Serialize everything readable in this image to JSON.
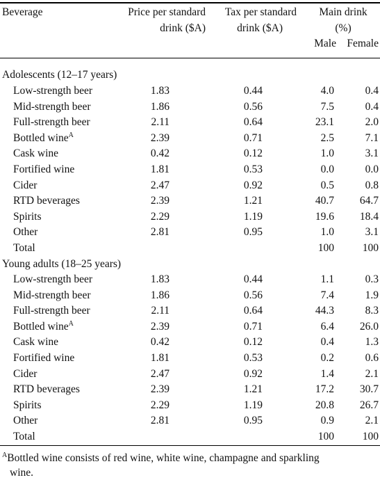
{
  "header": {
    "beverage": "Beverage",
    "price_line1": "Price per standard",
    "price_line2": "drink ($A)",
    "tax_line1": "Tax per standard",
    "tax_line2": "drink ($A)",
    "main_line1": "Main drink",
    "main_line2": "(%)",
    "male": "Male",
    "female": "Female"
  },
  "groups": [
    {
      "title": "Adolescents (12–17 years)",
      "rows": [
        {
          "name": "Low-strength beer",
          "sup": "",
          "price": "1.83",
          "tax": "0.44",
          "male": "4.0",
          "female": "0.4"
        },
        {
          "name": "Mid-strength beer",
          "sup": "",
          "price": "1.86",
          "tax": "0.56",
          "male": "7.5",
          "female": "0.4"
        },
        {
          "name": "Full-strength beer",
          "sup": "",
          "price": "2.11",
          "tax": "0.64",
          "male": "23.1",
          "female": "2.0"
        },
        {
          "name": "Bottled wine",
          "sup": "A",
          "price": "2.39",
          "tax": "0.71",
          "male": "2.5",
          "female": "7.1"
        },
        {
          "name": "Cask wine",
          "sup": "",
          "price": "0.42",
          "tax": "0.12",
          "male": "1.0",
          "female": "3.1"
        },
        {
          "name": "Fortified wine",
          "sup": "",
          "price": "1.81",
          "tax": "0.53",
          "male": "0.0",
          "female": "0.0"
        },
        {
          "name": "Cider",
          "sup": "",
          "price": "2.47",
          "tax": "0.92",
          "male": "0.5",
          "female": "0.8"
        },
        {
          "name": "RTD beverages",
          "sup": "",
          "price": "2.39",
          "tax": "1.21",
          "male": "40.7",
          "female": "64.7"
        },
        {
          "name": "Spirits",
          "sup": "",
          "price": "2.29",
          "tax": "1.19",
          "male": "19.6",
          "female": "18.4"
        },
        {
          "name": "Other",
          "sup": "",
          "price": "2.81",
          "tax": "0.95",
          "male": "1.0",
          "female": "3.1"
        },
        {
          "name": "Total",
          "sup": "",
          "price": "",
          "tax": "",
          "male": "100",
          "female": "100"
        }
      ]
    },
    {
      "title": "Young adults (18–25 years)",
      "rows": [
        {
          "name": "Low-strength beer",
          "sup": "",
          "price": "1.83",
          "tax": "0.44",
          "male": "1.1",
          "female": "0.3"
        },
        {
          "name": "Mid-strength beer",
          "sup": "",
          "price": "1.86",
          "tax": "0.56",
          "male": "7.4",
          "female": "1.9"
        },
        {
          "name": "Full-strength beer",
          "sup": "",
          "price": "2.11",
          "tax": "0.64",
          "male": "44.3",
          "female": "8.3"
        },
        {
          "name": "Bottled wine",
          "sup": "A",
          "price": "2.39",
          "tax": "0.71",
          "male": "6.4",
          "female": "26.0"
        },
        {
          "name": "Cask wine",
          "sup": "",
          "price": "0.42",
          "tax": "0.12",
          "male": "0.4",
          "female": "1.3"
        },
        {
          "name": "Fortified wine",
          "sup": "",
          "price": "1.81",
          "tax": "0.53",
          "male": "0.2",
          "female": "0.6"
        },
        {
          "name": "Cider",
          "sup": "",
          "price": "2.47",
          "tax": "0.92",
          "male": "1.4",
          "female": "2.1"
        },
        {
          "name": "RTD beverages",
          "sup": "",
          "price": "2.39",
          "tax": "1.21",
          "male": "17.2",
          "female": "30.7"
        },
        {
          "name": "Spirits",
          "sup": "",
          "price": "2.29",
          "tax": "1.19",
          "male": "20.8",
          "female": "26.7"
        },
        {
          "name": "Other",
          "sup": "",
          "price": "2.81",
          "tax": "0.95",
          "male": "0.9",
          "female": "2.1"
        },
        {
          "name": "Total",
          "sup": "",
          "price": "",
          "tax": "",
          "male": "100",
          "female": "100"
        }
      ]
    }
  ],
  "footnote": {
    "marker": "A",
    "line1": "Bottled wine consists of red wine, white wine, champagne and sparkling",
    "line2": "wine."
  }
}
